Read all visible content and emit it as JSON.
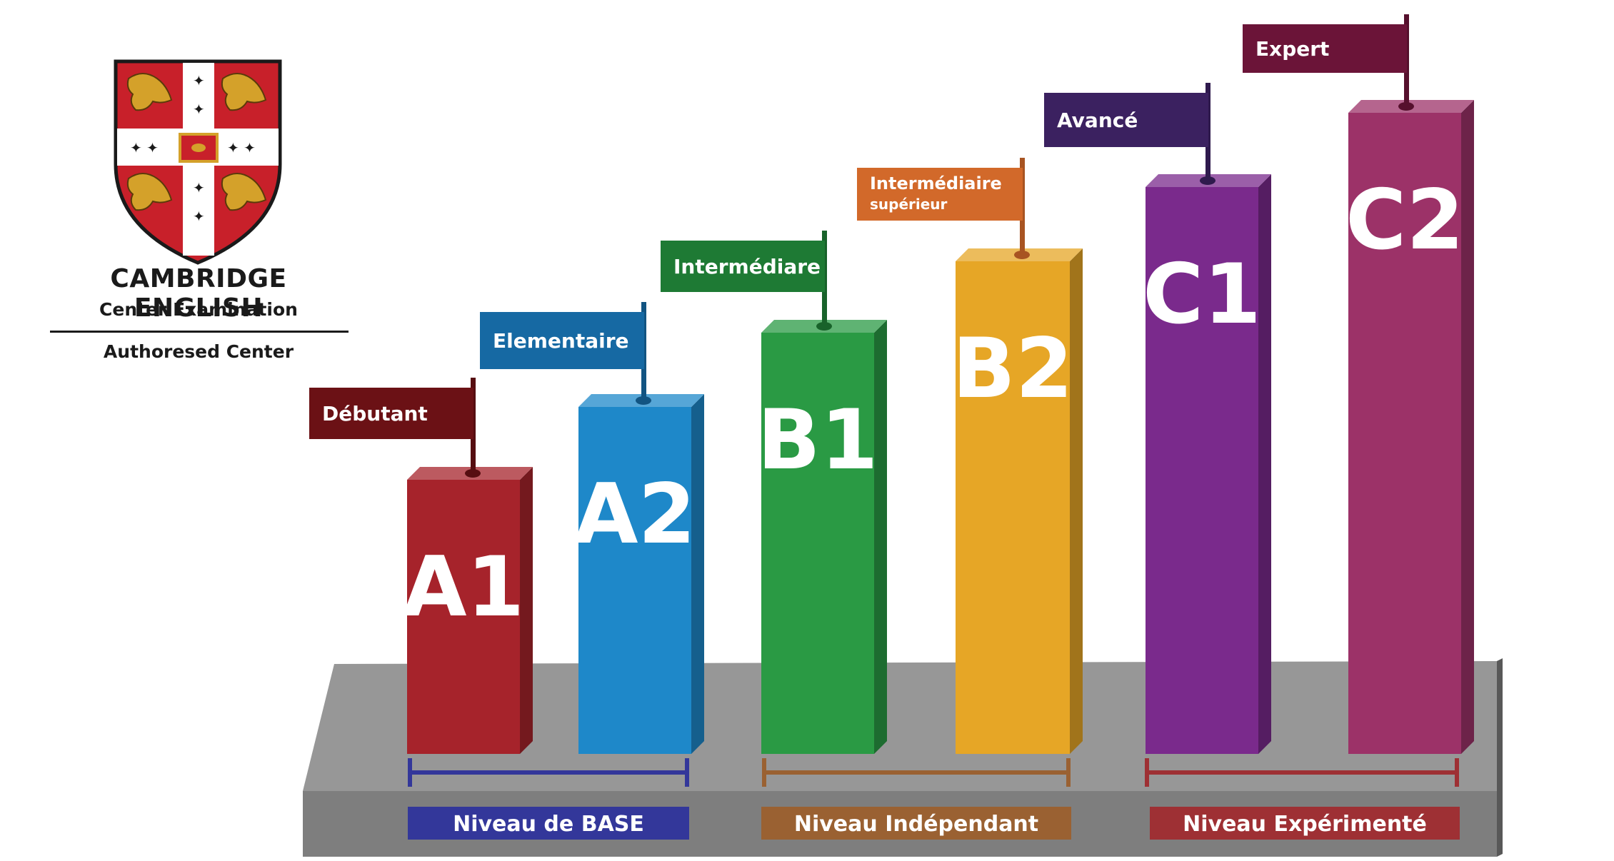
{
  "logo": {
    "title": "CAMBRIDGE ENGLISH",
    "subtitle": "Center Examination",
    "authorized": "Authoresed Center",
    "icon": "cambridge-coat-of-arms-icon"
  },
  "levels": [
    {
      "code": "A1",
      "label": "Débutant",
      "color": "#a6232b",
      "flag_color": "#6b1115"
    },
    {
      "code": "A2",
      "label": "Elementaire",
      "color": "#1e88c9",
      "flag_color": "#1669a3"
    },
    {
      "code": "B1",
      "label": "Intermédiare",
      "color": "#2a9a44",
      "flag_color": "#1e7a34"
    },
    {
      "code": "B2",
      "label": "Intermédiaire",
      "sublabel": "supérieur",
      "color": "#e6a626",
      "flag_color": "#d2692a"
    },
    {
      "code": "C1",
      "label": "Avancé",
      "color": "#7a2a8c",
      "flag_color": "#3b2160"
    },
    {
      "code": "C2",
      "label": "Expert",
      "color": "#9c3268",
      "flag_color": "#6b1438"
    }
  ],
  "groups": [
    {
      "label": "Niveau de BASE",
      "color": "#33379a"
    },
    {
      "label": "Niveau Indépendant",
      "color": "#9a6132"
    },
    {
      "label": "Niveau Expérimenté",
      "color": "#9e3034"
    }
  ],
  "colors": {
    "platform_top": "#979797",
    "platform_side": "#7e7e7e"
  }
}
